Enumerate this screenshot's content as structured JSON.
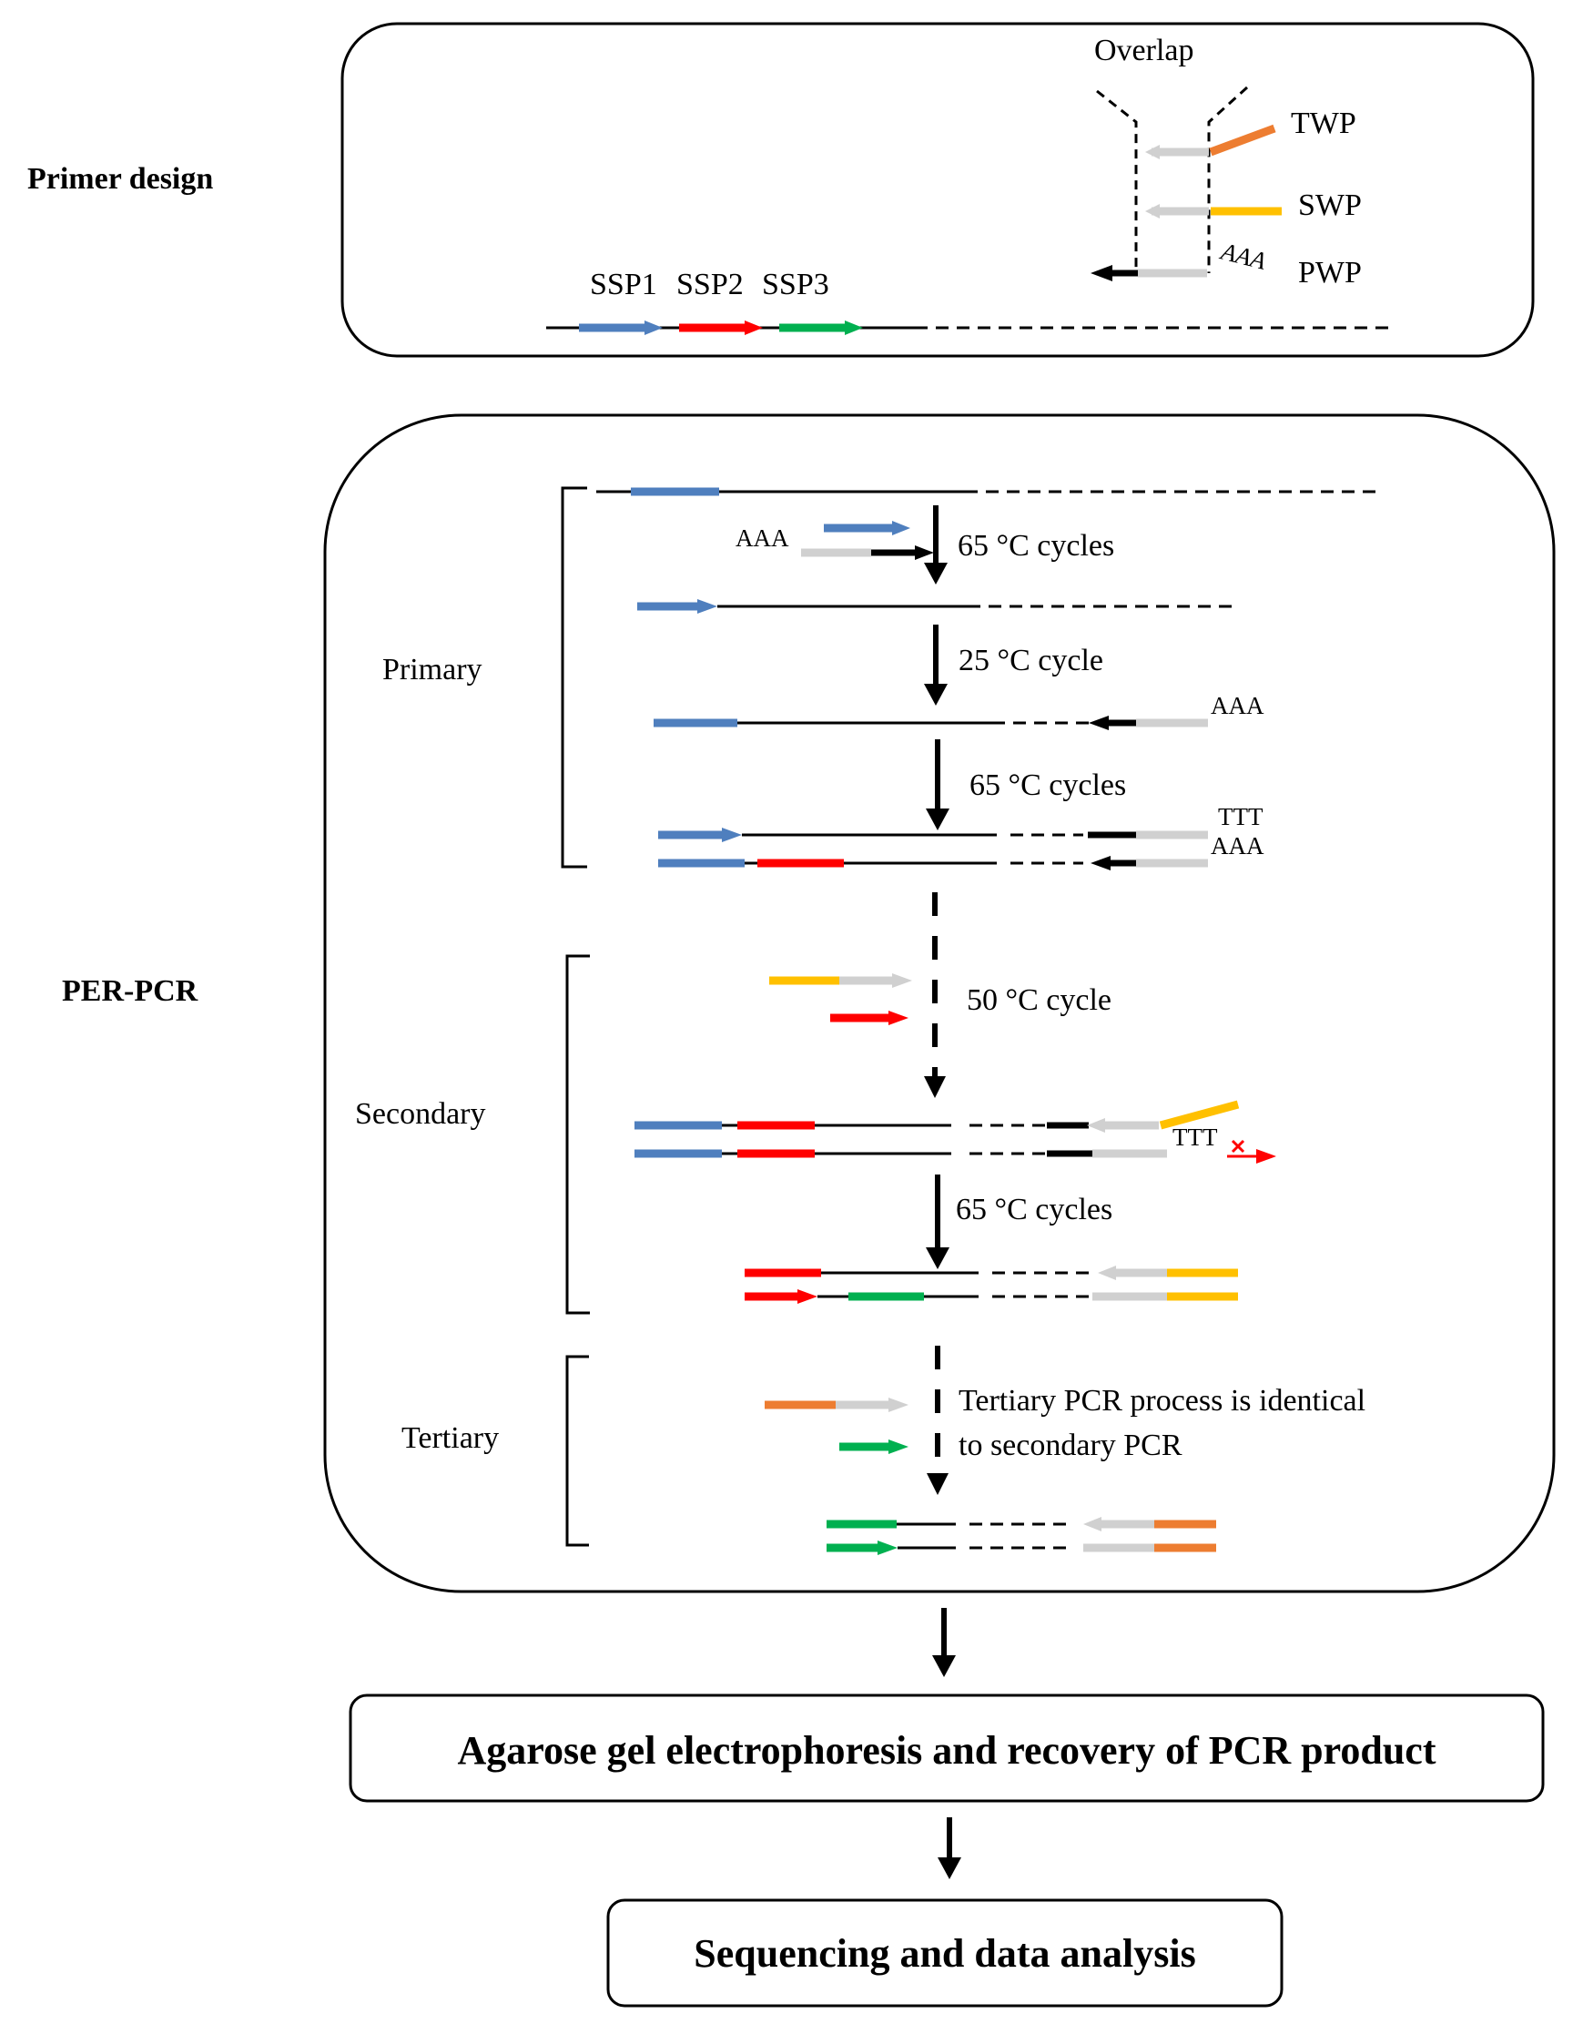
{
  "colors": {
    "blue": "#4F7FBE",
    "red": "#FF0000",
    "green": "#00B050",
    "gray": "#D0D0D0",
    "black": "#000000",
    "yellow": "#FFC000",
    "orange": "#ED7D31"
  },
  "sections": {
    "primer_design": "Primer design",
    "per_pcr": "PER-PCR"
  },
  "primer_design": {
    "overlap": "Overlap",
    "twp": "TWP",
    "swp": "SWP",
    "pwp": "PWP",
    "aaa": "AAA",
    "ssp1": "SSP1",
    "ssp2": "SSP2",
    "ssp3": "SSP3"
  },
  "stages": {
    "primary": "Primary",
    "secondary": "Secondary",
    "tertiary": "Tertiary"
  },
  "steps": {
    "step1": "65 °C cycles",
    "step2": "25 °C cycle",
    "step3": "65 °C cycles",
    "step4": "50 °C cycle",
    "step5": "65 °C cycles",
    "tertiary_line1": "Tertiary PCR process is identical",
    "tertiary_line2": "to secondary PCR"
  },
  "seq": {
    "aaa": "AAA",
    "ttt": "TTT"
  },
  "boxes": {
    "gel": "Agarose gel electrophoresis and recovery of PCR product",
    "sequencing": "Sequencing and data analysis"
  }
}
